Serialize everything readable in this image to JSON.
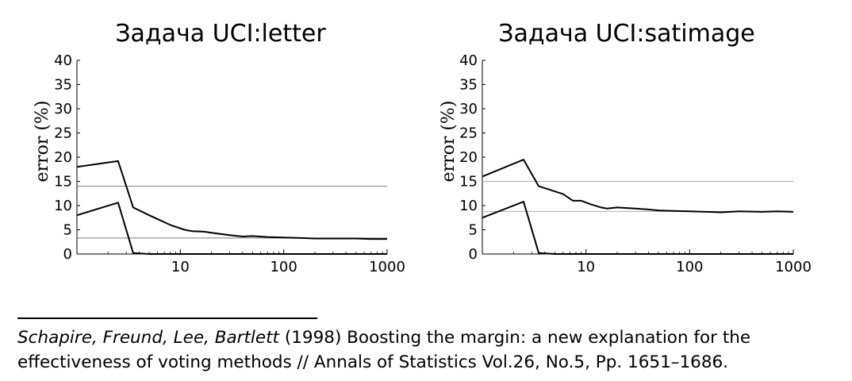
{
  "chart_data": [
    {
      "type": "line",
      "title": "Задача UCI:letter",
      "xlabel": "",
      "ylabel": "error (%)",
      "xscale": "log",
      "xlim": [
        1,
        1000
      ],
      "ylim": [
        0,
        40
      ],
      "xticks": [
        "10",
        "100",
        "1000"
      ],
      "yticks": [
        "0",
        "5",
        "10",
        "15",
        "20",
        "25",
        "30",
        "35",
        "40"
      ],
      "grid": false,
      "colors": {
        "series": "#000000",
        "reference": "#7f7f7f"
      },
      "series": [
        {
          "x": [
            1,
            2.5,
            3.5,
            5,
            8,
            11,
            13,
            17,
            20,
            30,
            40,
            50,
            70,
            100,
            150,
            200,
            300,
            500,
            700,
            1000
          ],
          "values": [
            18,
            19.2,
            9.6,
            8.0,
            6.0,
            5.0,
            4.7,
            4.6,
            4.4,
            3.9,
            3.6,
            3.7,
            3.5,
            3.4,
            3.3,
            3.2,
            3.2,
            3.2,
            3.1,
            3.1
          ]
        },
        {
          "x": [
            1,
            2.5,
            3.5,
            5,
            10,
            100,
            1000
          ],
          "values": [
            8,
            10.6,
            0.2,
            0,
            0,
            0,
            0
          ]
        }
      ],
      "reference_lines": [
        14,
        3.3
      ]
    },
    {
      "type": "line",
      "title": "Задача UCI:satimage",
      "xlabel": "",
      "ylabel": "error (%)",
      "xscale": "log",
      "xlim": [
        1,
        1000
      ],
      "ylim": [
        0,
        40
      ],
      "xticks": [
        "10",
        "100",
        "1000"
      ],
      "yticks": [
        "0",
        "5",
        "10",
        "15",
        "20",
        "25",
        "30",
        "35",
        "40"
      ],
      "grid": false,
      "colors": {
        "series": "#000000",
        "reference": "#a8a8d0"
      },
      "series": [
        {
          "x": [
            1,
            2.5,
            3.5,
            6,
            7.5,
            9,
            11,
            14,
            16,
            20,
            30,
            40,
            50,
            70,
            100,
            150,
            200,
            300,
            500,
            700,
            1000
          ],
          "values": [
            16,
            19.5,
            14,
            12.4,
            11,
            11,
            10.3,
            9.6,
            9.4,
            9.6,
            9.4,
            9.2,
            9.0,
            8.9,
            8.8,
            8.7,
            8.6,
            8.8,
            8.7,
            8.8,
            8.7
          ]
        },
        {
          "x": [
            1,
            2.5,
            3.5,
            5,
            10,
            100,
            1000
          ],
          "values": [
            7.5,
            10.8,
            0.2,
            0,
            0,
            0,
            0
          ]
        }
      ],
      "reference_lines": [
        15,
        8.8
      ]
    }
  ],
  "citation": {
    "authors": "Schapire, Freund, Lee, Bartlett",
    "text": " (1998) Boosting the margin: a new explanation for the effectiveness of voting methods // Annals of Statistics Vol.26, No.5, Pp. 1651–1686."
  }
}
